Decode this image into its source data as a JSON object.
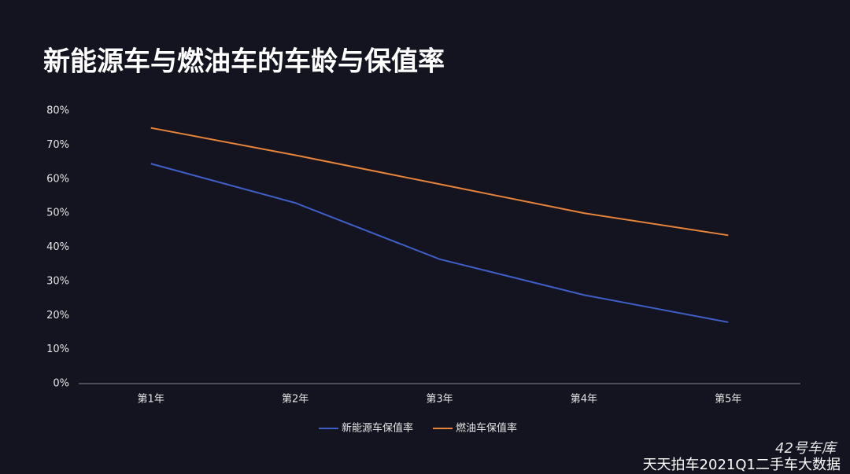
{
  "chart_data": {
    "type": "line",
    "title": "新能源车与燃油车的车龄与保值率",
    "categories": [
      "第1年",
      "第2年",
      "第3年",
      "第4年",
      "第5年"
    ],
    "series": [
      {
        "name": "新能源车保值率",
        "color": "#3f5fc8",
        "values": [
          64.5,
          53,
          36.5,
          26,
          18
        ]
      },
      {
        "name": "燃油车保值率",
        "color": "#e8843a",
        "values": [
          75,
          67,
          58.5,
          50,
          43.5
        ]
      }
    ],
    "ylim": [
      0,
      80
    ],
    "yticks": [
      {
        "value": 0,
        "label": "0%"
      },
      {
        "value": 10,
        "label": "10%"
      },
      {
        "value": 20,
        "label": "20%"
      },
      {
        "value": 30,
        "label": "30%"
      },
      {
        "value": 40,
        "label": "40%"
      },
      {
        "value": 50,
        "label": "50%"
      },
      {
        "value": 60,
        "label": "60%"
      },
      {
        "value": 70,
        "label": "70%"
      },
      {
        "value": 80,
        "label": "80%"
      }
    ],
    "legend": "bottom"
  },
  "watermark": "42号车库",
  "source": "天天拍车2021Q1二手车大数据"
}
